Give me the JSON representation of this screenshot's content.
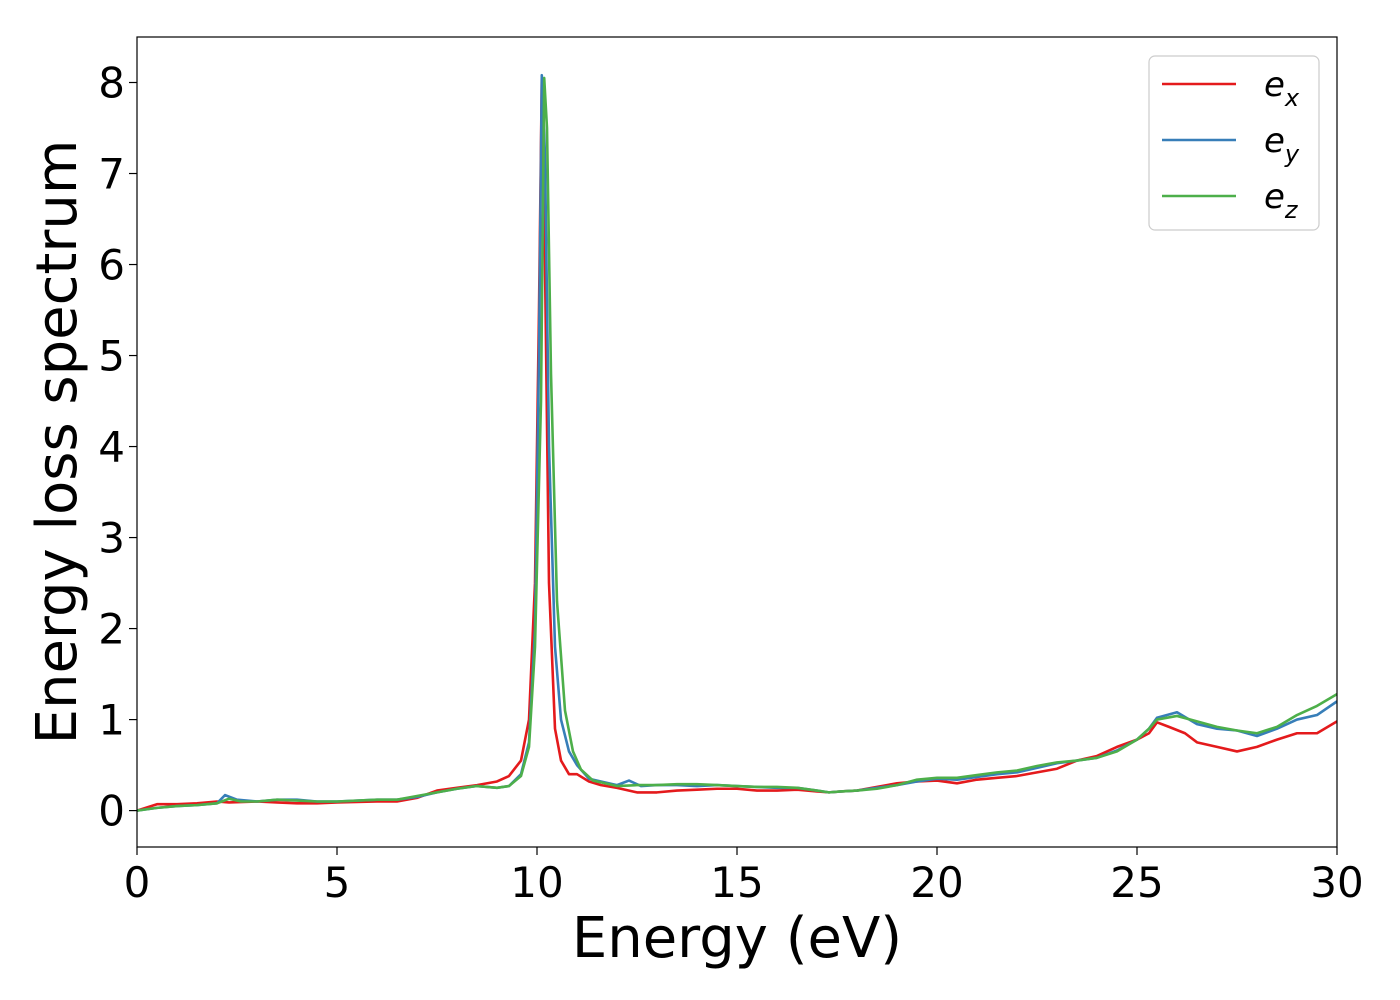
{
  "chart_data": {
    "type": "line",
    "xlabel": "Energy (eV)",
    "ylabel": "Energy loss spectrum",
    "xlim": [
      0,
      30
    ],
    "ylim": [
      -0.4,
      8.5
    ],
    "xticks": [
      0,
      5,
      10,
      15,
      20,
      25,
      30
    ],
    "yticks": [
      0,
      1,
      2,
      3,
      4,
      5,
      6,
      7,
      8
    ],
    "grid": false,
    "legend_position": "top-right",
    "series": [
      {
        "name": "e",
        "subscript": "x",
        "color": "#e41a1c",
        "points": [
          [
            0,
            0.0
          ],
          [
            0.5,
            0.07
          ],
          [
            1,
            0.07
          ],
          [
            1.5,
            0.08
          ],
          [
            2,
            0.1
          ],
          [
            2.3,
            0.09
          ],
          [
            3,
            0.1
          ],
          [
            3.5,
            0.09
          ],
          [
            4,
            0.08
          ],
          [
            4.5,
            0.08
          ],
          [
            5,
            0.09
          ],
          [
            6,
            0.1
          ],
          [
            6.5,
            0.1
          ],
          [
            7,
            0.14
          ],
          [
            7.5,
            0.22
          ],
          [
            8,
            0.25
          ],
          [
            8.5,
            0.28
          ],
          [
            9,
            0.32
          ],
          [
            9.3,
            0.38
          ],
          [
            9.6,
            0.55
          ],
          [
            9.8,
            1.0
          ],
          [
            9.95,
            2.5
          ],
          [
            10.05,
            5.5
          ],
          [
            10.12,
            8.05
          ],
          [
            10.2,
            6.0
          ],
          [
            10.3,
            2.5
          ],
          [
            10.45,
            0.9
          ],
          [
            10.6,
            0.55
          ],
          [
            10.8,
            0.4
          ],
          [
            11,
            0.4
          ],
          [
            11.3,
            0.32
          ],
          [
            11.6,
            0.28
          ],
          [
            12,
            0.25
          ],
          [
            12.5,
            0.2
          ],
          [
            13,
            0.2
          ],
          [
            13.5,
            0.22
          ],
          [
            14,
            0.23
          ],
          [
            14.5,
            0.24
          ],
          [
            15,
            0.24
          ],
          [
            15.5,
            0.22
          ],
          [
            16,
            0.22
          ],
          [
            16.5,
            0.23
          ],
          [
            17,
            0.21
          ],
          [
            17.3,
            0.2
          ],
          [
            17.6,
            0.21
          ],
          [
            18,
            0.22
          ],
          [
            18.5,
            0.26
          ],
          [
            19,
            0.3
          ],
          [
            19.5,
            0.32
          ],
          [
            20,
            0.33
          ],
          [
            20.5,
            0.3
          ],
          [
            21,
            0.34
          ],
          [
            21.5,
            0.36
          ],
          [
            22,
            0.38
          ],
          [
            22.5,
            0.42
          ],
          [
            23,
            0.46
          ],
          [
            23.5,
            0.55
          ],
          [
            24,
            0.6
          ],
          [
            24.5,
            0.7
          ],
          [
            25,
            0.78
          ],
          [
            25.3,
            0.85
          ],
          [
            25.5,
            0.97
          ],
          [
            25.8,
            0.92
          ],
          [
            26.2,
            0.85
          ],
          [
            26.5,
            0.75
          ],
          [
            27,
            0.7
          ],
          [
            27.5,
            0.65
          ],
          [
            28,
            0.7
          ],
          [
            28.5,
            0.78
          ],
          [
            29,
            0.85
          ],
          [
            29.5,
            0.85
          ],
          [
            30,
            0.98
          ]
        ]
      },
      {
        "name": "e",
        "subscript": "y",
        "color": "#377eb8",
        "points": [
          [
            0,
            0.0
          ],
          [
            0.5,
            0.03
          ],
          [
            1,
            0.05
          ],
          [
            1.5,
            0.06
          ],
          [
            2,
            0.08
          ],
          [
            2.2,
            0.17
          ],
          [
            2.5,
            0.12
          ],
          [
            3,
            0.1
          ],
          [
            3.5,
            0.12
          ],
          [
            4,
            0.12
          ],
          [
            4.5,
            0.1
          ],
          [
            5,
            0.1
          ],
          [
            6,
            0.12
          ],
          [
            6.5,
            0.12
          ],
          [
            7,
            0.15
          ],
          [
            7.5,
            0.2
          ],
          [
            8,
            0.24
          ],
          [
            8.5,
            0.27
          ],
          [
            9,
            0.25
          ],
          [
            9.3,
            0.27
          ],
          [
            9.6,
            0.4
          ],
          [
            9.8,
            0.75
          ],
          [
            9.95,
            2.0
          ],
          [
            10.05,
            5.0
          ],
          [
            10.12,
            8.08
          ],
          [
            10.2,
            7.2
          ],
          [
            10.3,
            4.0
          ],
          [
            10.45,
            1.8
          ],
          [
            10.6,
            1.0
          ],
          [
            10.8,
            0.65
          ],
          [
            11,
            0.5
          ],
          [
            11.3,
            0.35
          ],
          [
            11.6,
            0.32
          ],
          [
            12,
            0.28
          ],
          [
            12.3,
            0.33
          ],
          [
            12.6,
            0.27
          ],
          [
            13,
            0.28
          ],
          [
            13.5,
            0.28
          ],
          [
            14,
            0.27
          ],
          [
            14.5,
            0.28
          ],
          [
            15,
            0.27
          ],
          [
            15.5,
            0.26
          ],
          [
            16,
            0.25
          ],
          [
            16.5,
            0.25
          ],
          [
            17,
            0.22
          ],
          [
            17.3,
            0.2
          ],
          [
            17.6,
            0.21
          ],
          [
            18,
            0.22
          ],
          [
            18.5,
            0.25
          ],
          [
            19,
            0.28
          ],
          [
            19.5,
            0.32
          ],
          [
            20,
            0.35
          ],
          [
            20.5,
            0.34
          ],
          [
            21,
            0.37
          ],
          [
            21.5,
            0.4
          ],
          [
            22,
            0.42
          ],
          [
            22.5,
            0.47
          ],
          [
            23,
            0.52
          ],
          [
            23.5,
            0.55
          ],
          [
            24,
            0.58
          ],
          [
            24.5,
            0.66
          ],
          [
            25,
            0.78
          ],
          [
            25.3,
            0.9
          ],
          [
            25.5,
            1.02
          ],
          [
            26,
            1.08
          ],
          [
            26.5,
            0.95
          ],
          [
            27,
            0.9
          ],
          [
            27.5,
            0.88
          ],
          [
            28,
            0.82
          ],
          [
            28.5,
            0.9
          ],
          [
            29,
            1.0
          ],
          [
            29.5,
            1.05
          ],
          [
            30,
            1.2
          ]
        ]
      },
      {
        "name": "e",
        "subscript": "z",
        "color": "#4daf4a",
        "points": [
          [
            0,
            0.0
          ],
          [
            0.5,
            0.03
          ],
          [
            1,
            0.05
          ],
          [
            1.5,
            0.06
          ],
          [
            2,
            0.08
          ],
          [
            2.3,
            0.13
          ],
          [
            2.6,
            0.1
          ],
          [
            3,
            0.1
          ],
          [
            3.5,
            0.12
          ],
          [
            4,
            0.11
          ],
          [
            4.5,
            0.1
          ],
          [
            5,
            0.1
          ],
          [
            6,
            0.12
          ],
          [
            6.5,
            0.12
          ],
          [
            7,
            0.16
          ],
          [
            7.5,
            0.2
          ],
          [
            8,
            0.24
          ],
          [
            8.5,
            0.27
          ],
          [
            9,
            0.25
          ],
          [
            9.3,
            0.27
          ],
          [
            9.6,
            0.38
          ],
          [
            9.8,
            0.7
          ],
          [
            9.95,
            1.8
          ],
          [
            10.1,
            4.5
          ],
          [
            10.18,
            8.05
          ],
          [
            10.25,
            7.5
          ],
          [
            10.35,
            4.8
          ],
          [
            10.5,
            2.3
          ],
          [
            10.7,
            1.1
          ],
          [
            10.9,
            0.65
          ],
          [
            11.1,
            0.45
          ],
          [
            11.4,
            0.33
          ],
          [
            11.7,
            0.3
          ],
          [
            12,
            0.27
          ],
          [
            12.5,
            0.28
          ],
          [
            13,
            0.28
          ],
          [
            13.5,
            0.29
          ],
          [
            14,
            0.29
          ],
          [
            14.5,
            0.28
          ],
          [
            15,
            0.27
          ],
          [
            15.5,
            0.26
          ],
          [
            16,
            0.26
          ],
          [
            16.5,
            0.25
          ],
          [
            17,
            0.22
          ],
          [
            17.3,
            0.2
          ],
          [
            17.6,
            0.21
          ],
          [
            18,
            0.22
          ],
          [
            18.5,
            0.24
          ],
          [
            19,
            0.28
          ],
          [
            19.5,
            0.34
          ],
          [
            20,
            0.36
          ],
          [
            20.5,
            0.36
          ],
          [
            21,
            0.39
          ],
          [
            21.5,
            0.42
          ],
          [
            22,
            0.44
          ],
          [
            22.5,
            0.49
          ],
          [
            23,
            0.53
          ],
          [
            23.5,
            0.55
          ],
          [
            24,
            0.58
          ],
          [
            24.5,
            0.65
          ],
          [
            25,
            0.78
          ],
          [
            25.3,
            0.9
          ],
          [
            25.5,
            1.0
          ],
          [
            26,
            1.04
          ],
          [
            26.5,
            0.98
          ],
          [
            27,
            0.92
          ],
          [
            27.5,
            0.88
          ],
          [
            28,
            0.85
          ],
          [
            28.5,
            0.92
          ],
          [
            29,
            1.05
          ],
          [
            29.5,
            1.15
          ],
          [
            30,
            1.28
          ]
        ]
      }
    ]
  }
}
